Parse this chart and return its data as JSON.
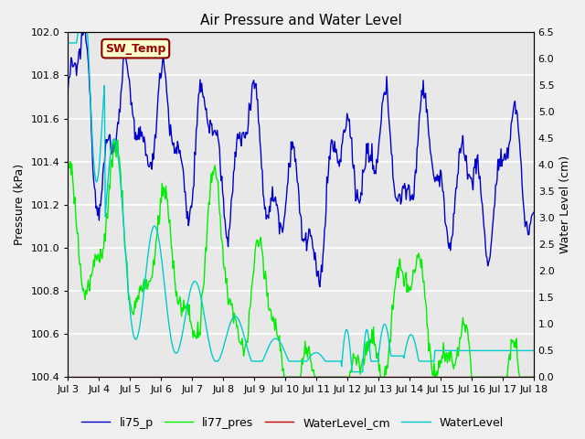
{
  "title": "Air Pressure and Water Level",
  "ylabel_left": "Pressure (kPa)",
  "ylabel_right": "Water Level (cm)",
  "xlim": [
    0,
    15
  ],
  "ylim_left": [
    100.4,
    102.0
  ],
  "ylim_right": [
    0.0,
    6.5
  ],
  "xtick_labels": [
    "Jul 3",
    "Jul 4",
    "Jul 5",
    "Jul 6",
    "Jul 7",
    "Jul 8",
    "Jul 9",
    "Jul 10",
    "Jul 11",
    "Jul 12",
    "Jul 13",
    "Jul 14",
    "Jul 15",
    "Jul 16",
    "Jul 17",
    "Jul 18"
  ],
  "colors": {
    "li75_p": "#0000cc",
    "li77_pres": "#00ee00",
    "WaterLevel_cm": "#cc0000",
    "WaterLevel": "#00cccc"
  },
  "annotation_text": "SW_Temp",
  "annotation_bbox_facecolor": "#ffffcc",
  "annotation_bbox_edgecolor": "#880000",
  "plot_bg": "#e8e8e8",
  "fig_bg": "#f0f0f0",
  "grid_color": "#ffffff",
  "title_fontsize": 11,
  "axis_fontsize": 9,
  "tick_fontsize": 8,
  "legend_fontsize": 9
}
